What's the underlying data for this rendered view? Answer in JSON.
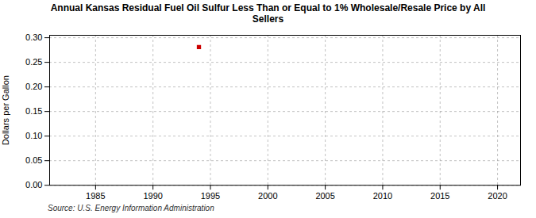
{
  "chart_data": {
    "type": "scatter",
    "title": "Annual Kansas Residual Fuel Oil Sulfur Less Than or Equal to 1% Wholesale/Resale Price by All\nSellers",
    "ylabel": "Dollars per Gallon",
    "source": "Source: U.S. Energy Information Administration",
    "x": [
      1994
    ],
    "values": [
      0.281
    ],
    "color": "#cc0000",
    "marker": "square",
    "xlim": [
      1981,
      2022
    ],
    "xticks": [
      1985,
      1990,
      1995,
      2000,
      2005,
      2010,
      2015,
      2020
    ],
    "ylim": [
      0.0,
      0.305
    ],
    "yticks": [
      {
        "value": 0.0,
        "label": "0.00"
      },
      {
        "value": 0.05,
        "label": "0.05"
      },
      {
        "value": 0.1,
        "label": "0.10"
      },
      {
        "value": 0.15,
        "label": "0.15"
      },
      {
        "value": 0.2,
        "label": "0.20"
      },
      {
        "value": 0.25,
        "label": "0.25"
      },
      {
        "value": 0.3,
        "label": "0.30"
      }
    ],
    "grid": true
  }
}
